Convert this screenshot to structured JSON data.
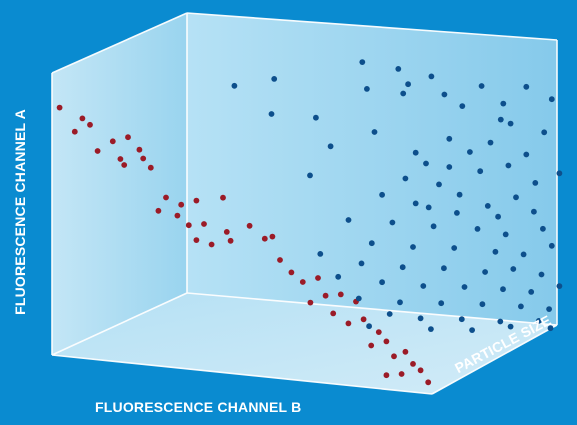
{
  "colors": {
    "background": "#0a8bd0",
    "panel_light": "#e6f4fb",
    "panel_mid": "#9fd6ef",
    "edge": "#ffffff",
    "series_red": "#9b1b27",
    "series_blue": "#0d4f8c"
  },
  "chart_data": {
    "type": "scatter",
    "projection": "3d",
    "title": "",
    "xlabel": "FLUORESCENCE CHANNEL B",
    "ylabel": "FLUORESCENCE CHANNEL A",
    "zlabel": "PARTICLE SIZE",
    "grid": false,
    "legend": "none",
    "series": [
      {
        "color": "#9b1b27",
        "points": [
          [
            0.02,
            0.88,
            0.0
          ],
          [
            0.08,
            0.85,
            0.0
          ],
          [
            0.1,
            0.83,
            0.0
          ],
          [
            0.06,
            0.8,
            0.0
          ],
          [
            0.16,
            0.78,
            0.0
          ],
          [
            0.2,
            0.8,
            0.0
          ],
          [
            0.23,
            0.76,
            0.0
          ],
          [
            0.12,
            0.74,
            0.0
          ],
          [
            0.18,
            0.72,
            0.0
          ],
          [
            0.24,
            0.73,
            0.0
          ],
          [
            0.19,
            0.7,
            0.0
          ],
          [
            0.26,
            0.7,
            0.0
          ],
          [
            0.3,
            0.6,
            0.0
          ],
          [
            0.34,
            0.58,
            0.0
          ],
          [
            0.38,
            0.6,
            0.0
          ],
          [
            0.45,
            0.62,
            0.0
          ],
          [
            0.28,
            0.55,
            0.0
          ],
          [
            0.33,
            0.54,
            0.0
          ],
          [
            0.36,
            0.51,
            0.0
          ],
          [
            0.4,
            0.52,
            0.0
          ],
          [
            0.46,
            0.5,
            0.0
          ],
          [
            0.52,
            0.53,
            0.0
          ],
          [
            0.56,
            0.49,
            0.0
          ],
          [
            0.58,
            0.5,
            0.0
          ],
          [
            0.38,
            0.46,
            0.0
          ],
          [
            0.42,
            0.45,
            0.0
          ],
          [
            0.47,
            0.47,
            0.0
          ],
          [
            0.6,
            0.42,
            0.0
          ],
          [
            0.63,
            0.38,
            0.0
          ],
          [
            0.66,
            0.35,
            0.0
          ],
          [
            0.7,
            0.37,
            0.0
          ],
          [
            0.72,
            0.31,
            0.0
          ],
          [
            0.76,
            0.32,
            0.0
          ],
          [
            0.8,
            0.3,
            0.0
          ],
          [
            0.68,
            0.28,
            0.0
          ],
          [
            0.74,
            0.25,
            0.0
          ],
          [
            0.78,
            0.22,
            0.0
          ],
          [
            0.82,
            0.24,
            0.0
          ],
          [
            0.86,
            0.2,
            0.0
          ],
          [
            0.84,
            0.15,
            0.0
          ],
          [
            0.88,
            0.17,
            0.0
          ],
          [
            0.9,
            0.12,
            0.0
          ],
          [
            0.93,
            0.14,
            0.0
          ],
          [
            0.95,
            0.1,
            0.0
          ],
          [
            0.97,
            0.08,
            0.0
          ],
          [
            0.92,
            0.06,
            0.0
          ],
          [
            0.88,
            0.05,
            0.0
          ],
          [
            0.99,
            0.04,
            0.0
          ]
        ]
      },
      {
        "color": "#0d4f8c",
        "points": [
          [
            0.55,
            0.95,
            0.75
          ],
          [
            0.62,
            0.92,
            0.82
          ],
          [
            0.66,
            0.88,
            0.78
          ],
          [
            0.7,
            0.9,
            0.84
          ],
          [
            0.58,
            0.87,
            0.7
          ],
          [
            0.64,
            0.84,
            0.8
          ],
          [
            0.72,
            0.83,
            0.88
          ],
          [
            0.46,
            0.76,
            0.66
          ],
          [
            0.76,
            0.79,
            0.9
          ],
          [
            0.8,
            0.86,
            0.93
          ],
          [
            0.85,
            0.8,
            0.95
          ],
          [
            0.88,
            0.74,
            0.92
          ],
          [
            0.74,
            0.68,
            0.86
          ],
          [
            0.78,
            0.63,
            0.9
          ],
          [
            0.82,
            0.66,
            0.94
          ],
          [
            0.7,
            0.6,
            0.8
          ],
          [
            0.66,
            0.55,
            0.76
          ],
          [
            0.72,
            0.52,
            0.84
          ],
          [
            0.86,
            0.58,
            0.96
          ],
          [
            0.9,
            0.62,
            0.98
          ],
          [
            0.62,
            0.5,
            0.7
          ],
          [
            0.68,
            0.46,
            0.78
          ],
          [
            0.76,
            0.48,
            0.88
          ],
          [
            0.82,
            0.44,
            0.92
          ],
          [
            0.88,
            0.47,
            0.96
          ],
          [
            0.92,
            0.42,
            0.98
          ],
          [
            0.56,
            0.42,
            0.62
          ],
          [
            0.64,
            0.4,
            0.72
          ],
          [
            0.72,
            0.38,
            0.8
          ],
          [
            0.8,
            0.36,
            0.9
          ],
          [
            0.86,
            0.34,
            0.94
          ],
          [
            0.94,
            0.36,
            0.99
          ],
          [
            0.6,
            0.33,
            0.68
          ],
          [
            0.68,
            0.31,
            0.76
          ],
          [
            0.76,
            0.3,
            0.84
          ],
          [
            0.84,
            0.28,
            0.92
          ],
          [
            0.9,
            0.27,
            0.96
          ],
          [
            0.96,
            0.3,
            1.0
          ],
          [
            0.58,
            0.26,
            0.66
          ],
          [
            0.66,
            0.24,
            0.74
          ],
          [
            0.74,
            0.23,
            0.82
          ],
          [
            0.82,
            0.21,
            0.9
          ],
          [
            0.88,
            0.22,
            0.94
          ],
          [
            0.94,
            0.2,
            0.98
          ],
          [
            0.62,
            0.19,
            0.7
          ],
          [
            0.7,
            0.17,
            0.78
          ],
          [
            0.78,
            0.16,
            0.86
          ],
          [
            0.86,
            0.15,
            0.92
          ],
          [
            0.92,
            0.14,
            0.96
          ],
          [
            0.98,
            0.16,
            1.0
          ],
          [
            0.66,
            0.12,
            0.72
          ],
          [
            0.74,
            0.11,
            0.8
          ],
          [
            0.82,
            0.1,
            0.88
          ],
          [
            0.9,
            0.09,
            0.94
          ],
          [
            0.96,
            0.08,
            0.98
          ],
          [
            0.7,
            0.06,
            0.76
          ],
          [
            0.78,
            0.05,
            0.84
          ],
          [
            0.86,
            0.04,
            0.9
          ],
          [
            0.94,
            0.04,
            0.96
          ],
          [
            0.58,
            0.14,
            0.64
          ],
          [
            0.64,
            0.08,
            0.7
          ],
          [
            0.72,
            0.02,
            0.78
          ],
          [
            0.8,
            0.01,
            0.86
          ],
          [
            0.88,
            0.02,
            0.92
          ],
          [
            0.96,
            0.01,
            0.99
          ],
          [
            0.5,
            0.3,
            0.58
          ],
          [
            0.54,
            0.22,
            0.6
          ],
          [
            0.6,
            0.04,
            0.66
          ],
          [
            0.76,
            0.42,
            0.86
          ],
          [
            0.84,
            0.4,
            0.94
          ],
          [
            0.7,
            0.44,
            0.82
          ],
          [
            0.92,
            0.52,
            0.99
          ],
          [
            0.8,
            0.56,
            0.92
          ],
          [
            0.74,
            0.58,
            0.86
          ],
          [
            0.68,
            0.64,
            0.78
          ],
          [
            0.94,
            0.7,
            1.0
          ],
          [
            0.98,
            0.56,
            1.0
          ],
          [
            0.52,
            0.68,
            0.6
          ],
          [
            0.48,
            0.58,
            0.56
          ],
          [
            0.6,
            0.72,
            0.7
          ],
          [
            0.84,
            0.74,
            0.96
          ],
          [
            0.9,
            0.86,
            0.98
          ],
          [
            0.96,
            0.82,
            1.0
          ],
          [
            0.4,
            0.8,
            0.5
          ],
          [
            0.32,
            0.9,
            0.45
          ],
          [
            0.4,
            0.92,
            0.52
          ]
        ]
      }
    ]
  },
  "labels": {
    "y_axis": "FLUORESCENCE CHANNEL A",
    "x_axis": "FLUORESCENCE CHANNEL B",
    "z_axis": "PARTICLE SIZE"
  }
}
